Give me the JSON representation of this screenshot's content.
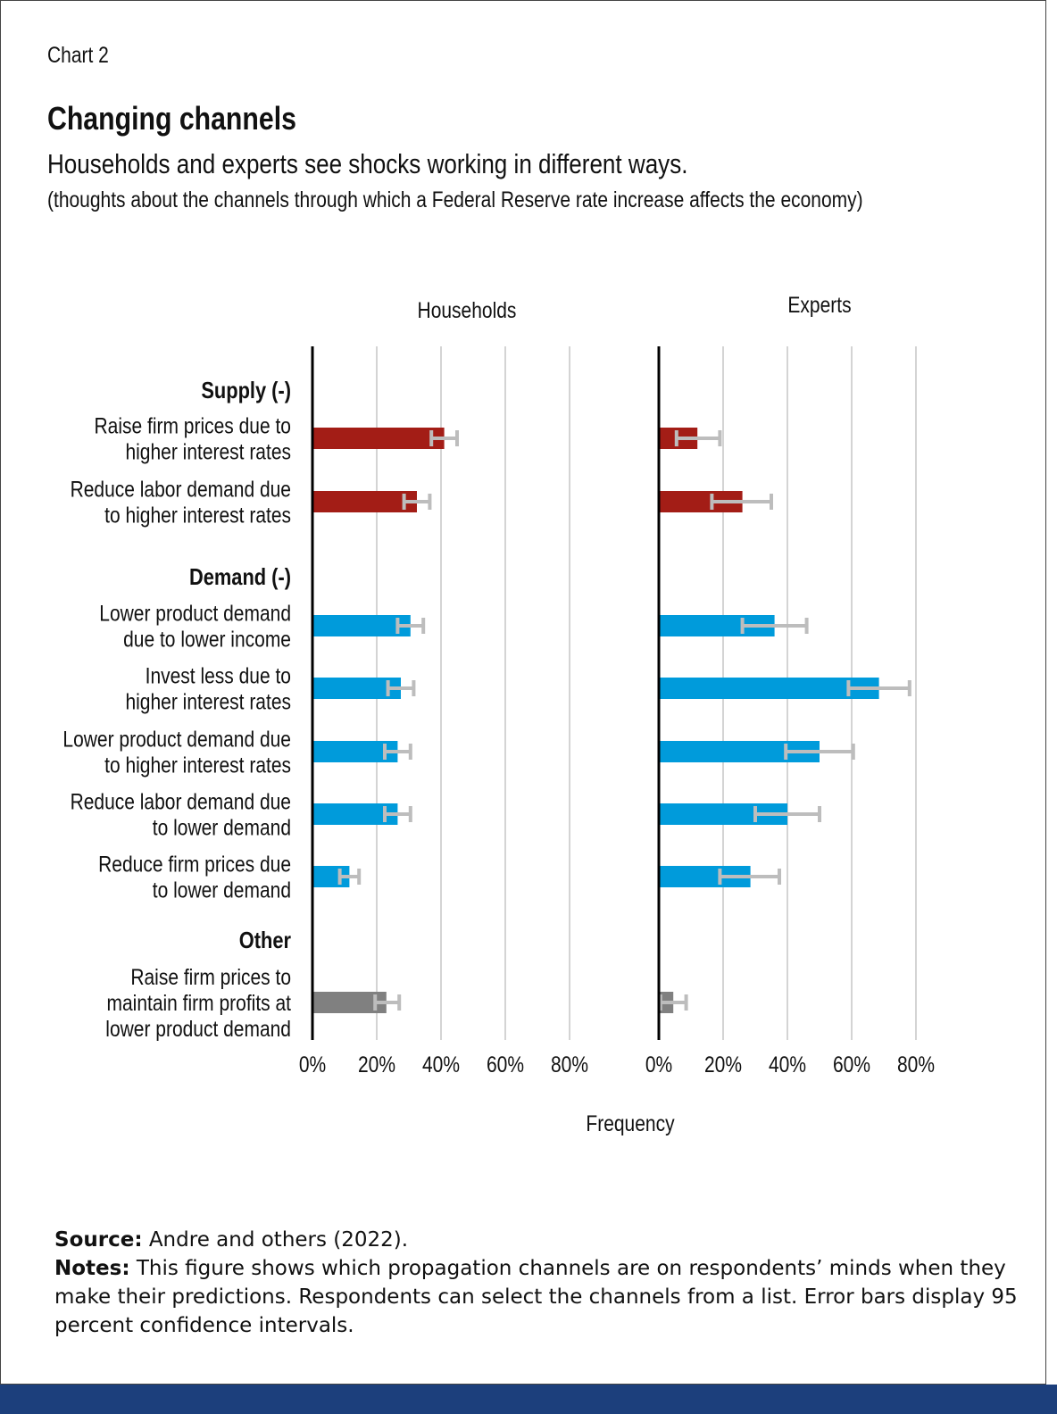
{
  "header": {
    "chart_label": "Chart 2",
    "title": "Changing channels",
    "subtitle": "Households and experts see shocks working in different ways.",
    "subsubtitle": "(thoughts about the channels through which a Federal Reserve rate increase affects the economy)"
  },
  "footer": {
    "source_label": "Source:",
    "source_text": "Andre and others (2022).",
    "notes_label": "Notes:",
    "notes_text": "This figure shows which propagation channels are on respondents’ minds when they make their predictions. Respondents can select the channels from a list. Error bars display 95 percent confidence intervals."
  },
  "chart_data": {
    "type": "bar",
    "orientation": "horizontal",
    "xlabel": "Frequency",
    "xlim": [
      0,
      80
    ],
    "xticks": [
      "0%",
      "20%",
      "40%",
      "60%",
      "80%"
    ],
    "grid": true,
    "colors": {
      "Supply (-)": "#a31d16",
      "Demand (-)": "#009bdb",
      "Other": "#808080",
      "error_bar": "#bdbdbd"
    },
    "groups": [
      {
        "name": "Supply (-)",
        "categories": [
          {
            "label": [
              "Raise firm prices due to",
              "higher interest rates"
            ],
            "households": 41,
            "households_ci": [
              37,
              45
            ],
            "experts": 12,
            "experts_ci": [
              5.5,
              19
            ]
          },
          {
            "label": [
              "Reduce labor demand due",
              "to higher interest rates"
            ],
            "households": 32.5,
            "households_ci": [
              28.5,
              36.5
            ],
            "experts": 26,
            "experts_ci": [
              16.5,
              35
            ]
          }
        ]
      },
      {
        "name": "Demand (-)",
        "categories": [
          {
            "label": [
              "Lower product demand",
              "due to lower income"
            ],
            "households": 30.5,
            "households_ci": [
              26.5,
              34.5
            ],
            "experts": 36,
            "experts_ci": [
              26,
              46
            ]
          },
          {
            "label": [
              "Invest less due to",
              "higher interest rates"
            ],
            "households": 27.5,
            "households_ci": [
              23.5,
              31.5
            ],
            "experts": 68.5,
            "experts_ci": [
              59,
              78
            ]
          },
          {
            "label": [
              "Lower product demand due",
              "to higher interest rates"
            ],
            "households": 26.5,
            "households_ci": [
              22.5,
              30.5
            ],
            "experts": 50,
            "experts_ci": [
              39.5,
              60.5
            ]
          },
          {
            "label": [
              "Reduce labor demand due",
              "to lower demand"
            ],
            "households": 26.5,
            "households_ci": [
              22.5,
              30.5
            ],
            "experts": 40,
            "experts_ci": [
              30,
              50
            ]
          },
          {
            "label": [
              "Reduce firm prices due",
              "to lower demand"
            ],
            "households": 11.5,
            "households_ci": [
              8.5,
              14.5
            ],
            "experts": 28.5,
            "experts_ci": [
              19,
              37.5
            ]
          }
        ]
      },
      {
        "name": "Other",
        "categories": [
          {
            "label": [
              "Raise firm prices to",
              "maintain firm profits at",
              "lower product demand"
            ],
            "households": 23,
            "households_ci": [
              19.5,
              27
            ],
            "experts": 4.5,
            "experts_ci": [
              0.5,
              8.5
            ]
          }
        ]
      }
    ],
    "panels": [
      {
        "key": "households",
        "title": "Households"
      },
      {
        "key": "experts",
        "title": "Experts"
      }
    ]
  }
}
